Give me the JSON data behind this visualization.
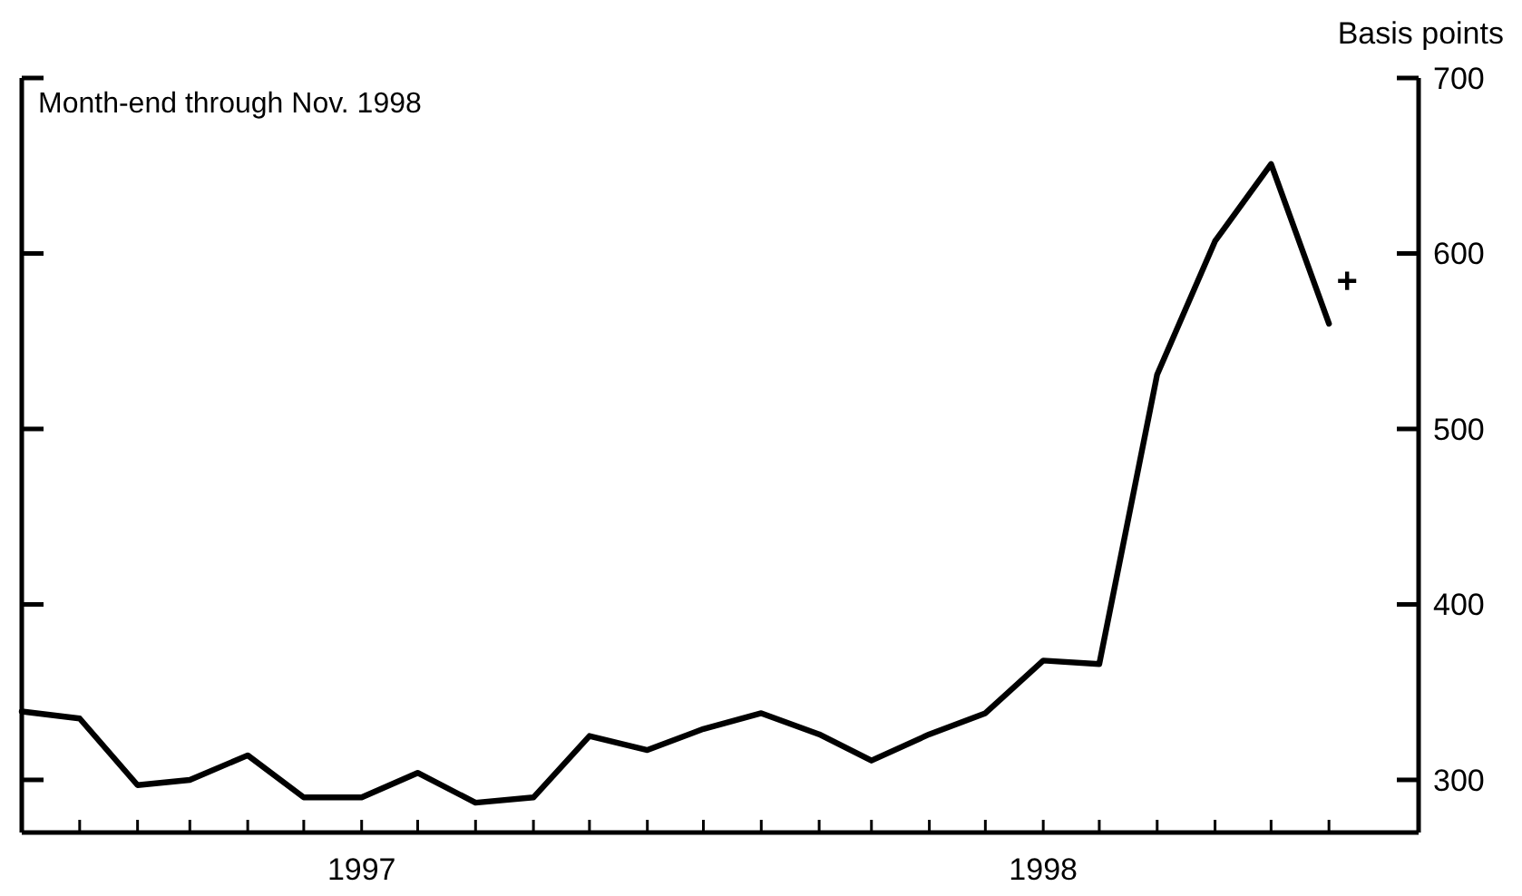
{
  "chart_data": {
    "type": "line",
    "ylabel": "Basis points",
    "annotations": [
      "Month-end through Nov. 1998",
      "+"
    ],
    "x": [
      "1996-12",
      "1997-01",
      "1997-02",
      "1997-03",
      "1997-04",
      "1997-05",
      "1997-06",
      "1997-07",
      "1997-08",
      "1997-09",
      "1997-10",
      "1997-11",
      "1997-12",
      "1998-01",
      "1998-02",
      "1998-03",
      "1998-04",
      "1998-05",
      "1998-06",
      "1998-07",
      "1998-08",
      "1998-09",
      "1998-10",
      "1998-11"
    ],
    "series": [
      {
        "color": "#000000",
        "values": [
          339,
          335,
          297,
          300,
          314,
          290,
          290,
          304,
          287,
          290,
          325,
          317,
          329,
          338,
          326,
          311,
          326,
          338,
          368,
          366,
          531,
          607,
          651,
          560
        ]
      }
    ],
    "xlim": [
      "1996-12",
      "1998-12-19"
    ],
    "xticks": [
      {
        "value": "1997-01",
        "label": null
      },
      {
        "value": "1997-02",
        "label": null
      },
      {
        "value": "1997-03",
        "label": null
      },
      {
        "value": "1997-04",
        "label": null
      },
      {
        "value": "1997-05",
        "label": null
      },
      {
        "value": "1997-06",
        "label": "1997"
      },
      {
        "value": "1997-07",
        "label": null
      },
      {
        "value": "1997-08",
        "label": null
      },
      {
        "value": "1997-09",
        "label": null
      },
      {
        "value": "1997-10",
        "label": null
      },
      {
        "value": "1997-11",
        "label": null
      },
      {
        "value": "1997-12",
        "label": null
      },
      {
        "value": "1998-01",
        "label": null
      },
      {
        "value": "1998-02",
        "label": null
      },
      {
        "value": "1998-03",
        "label": null
      },
      {
        "value": "1998-04",
        "label": null
      },
      {
        "value": "1998-05",
        "label": null
      },
      {
        "value": "1998-06",
        "label": "1998"
      },
      {
        "value": "1998-07",
        "label": null
      },
      {
        "value": "1998-08",
        "label": null
      },
      {
        "value": "1998-09",
        "label": null
      },
      {
        "value": "1998-10",
        "label": null
      },
      {
        "value": "1998-11",
        "label": null
      }
    ],
    "ylim": [
      270,
      700
    ],
    "yticks": [
      300,
      400,
      500,
      600,
      700
    ],
    "grid": false,
    "marker": "none",
    "line_style": "solid"
  }
}
